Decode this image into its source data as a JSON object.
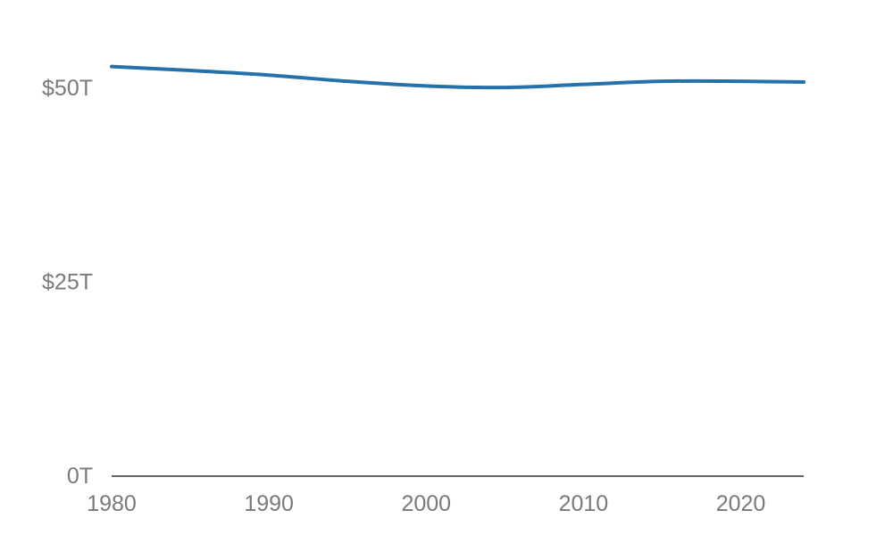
{
  "chart_data": {
    "type": "line",
    "title": "",
    "xlabel": "",
    "ylabel": "",
    "x": [
      1980,
      1985,
      1990,
      1995,
      2000,
      2005,
      2010,
      2015,
      2020,
      2024
    ],
    "series": [
      {
        "values": [
          52.8,
          52.3,
          51.7,
          50.9,
          50.3,
          50.1,
          50.5,
          50.9,
          50.9,
          50.8
        ],
        "color": "#2571aa"
      }
    ],
    "ylim": [
      0,
      55
    ],
    "xlim": [
      1980,
      2024
    ],
    "x_ticks": [
      {
        "value": 1980,
        "label": "1980"
      },
      {
        "value": 1990,
        "label": "1990"
      },
      {
        "value": 2000,
        "label": "2000"
      },
      {
        "value": 2010,
        "label": "2010"
      },
      {
        "value": 2020,
        "label": "2020"
      }
    ],
    "y_ticks": [
      {
        "value": 0,
        "label": "0T"
      },
      {
        "value": 25,
        "label": "$25T"
      },
      {
        "value": 50,
        "label": "$50T"
      }
    ],
    "grid": false,
    "legend": "none",
    "axis_color": "#666666",
    "tick_label_color": "#7a7a7a"
  }
}
